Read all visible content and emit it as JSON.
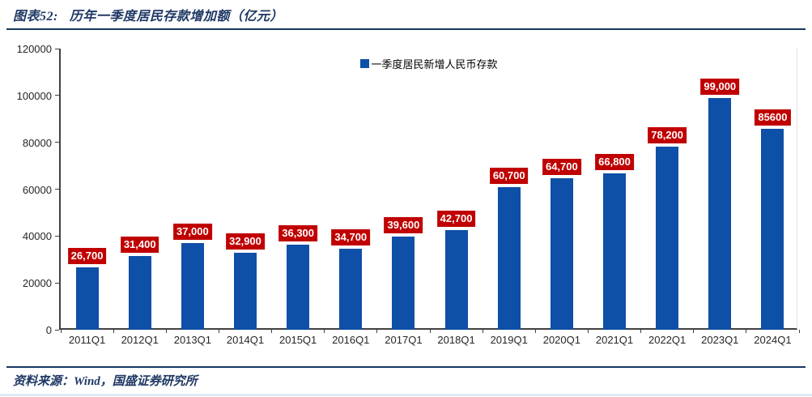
{
  "header": {
    "title_prefix": "图表52:",
    "title_text": "历年一季度居民存款增加额（亿元）"
  },
  "footer": {
    "source": "资料来源：Wind，国盛证券研究所"
  },
  "chart_data": {
    "type": "bar",
    "title": "历年一季度居民存款增加额（亿元）",
    "legend": "一季度居民新增人民币存款",
    "legend_position": "top-center",
    "categories": [
      "2011Q1",
      "2012Q1",
      "2013Q1",
      "2014Q1",
      "2015Q1",
      "2016Q1",
      "2017Q1",
      "2018Q1",
      "2019Q1",
      "2020Q1",
      "2021Q1",
      "2022Q1",
      "2023Q1",
      "2024Q1"
    ],
    "values": [
      26700,
      31400,
      37000,
      32900,
      36300,
      34700,
      39600,
      42700,
      60700,
      64700,
      66800,
      78200,
      99000,
      85600
    ],
    "value_labels": [
      "26,700",
      "31,400",
      "37,000",
      "32,900",
      "36,300",
      "34,700",
      "39,600",
      "42,700",
      "60,700",
      "64,700",
      "66,800",
      "78,200",
      "99,000",
      "85600"
    ],
    "xlabel": "",
    "ylabel": "",
    "ylim": [
      0,
      120000
    ],
    "yticks": [
      0,
      20000,
      40000,
      60000,
      80000,
      100000,
      120000
    ],
    "ytick_labels": [
      "0",
      "20000",
      "40000",
      "60000",
      "80000",
      "100000",
      "120000"
    ],
    "grid": false,
    "colors": {
      "bar": "#0E4FA7",
      "value_label_bg": "#C00000",
      "value_label_text": "#FFFFFF",
      "title": "#1F3864",
      "rule": "#17375E",
      "axis": "#404040"
    }
  }
}
